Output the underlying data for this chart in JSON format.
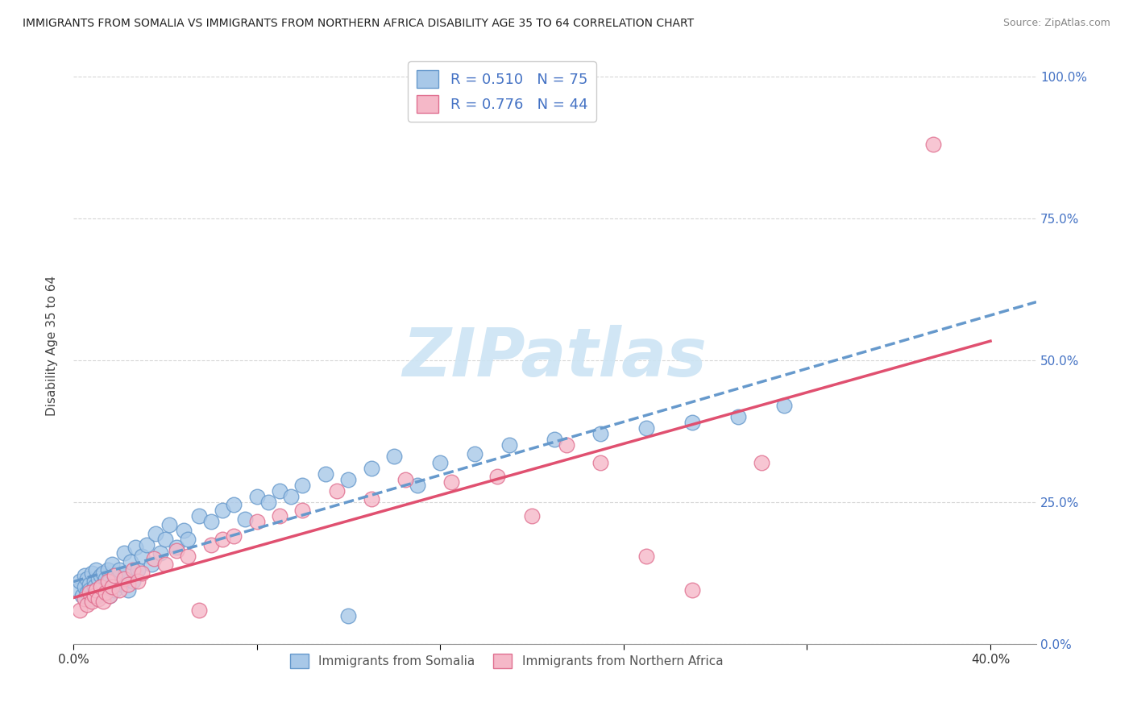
{
  "title": "IMMIGRANTS FROM SOMALIA VS IMMIGRANTS FROM NORTHERN AFRICA DISABILITY AGE 35 TO 64 CORRELATION CHART",
  "source": "Source: ZipAtlas.com",
  "ylabel": "Disability Age 35 to 64",
  "xlim": [
    0.0,
    0.42
  ],
  "ylim": [
    0.0,
    1.05
  ],
  "yticks": [
    0.0,
    0.25,
    0.5,
    0.75,
    1.0
  ],
  "right_ytick_labels": [
    "0.0%",
    "25.0%",
    "50.0%",
    "75.0%",
    "100.0%"
  ],
  "xtick_positions": [
    0.0,
    0.08,
    0.16,
    0.24,
    0.32,
    0.4
  ],
  "xtick_labels": [
    "0.0%",
    "",
    "",
    "",
    "",
    "40.0%"
  ],
  "somalia_color": "#a8c8e8",
  "somalia_edge_color": "#6699cc",
  "northern_africa_color": "#f5b8c8",
  "northern_africa_edge_color": "#e07090",
  "somalia_R": 0.51,
  "somalia_N": 75,
  "northern_africa_R": 0.776,
  "northern_africa_N": 44,
  "legend_text_color": "#4472c4",
  "somalia_line_color": "#6699cc",
  "northern_africa_line_color": "#e05070",
  "background_color": "#ffffff",
  "grid_color": "#cccccc",
  "watermark_text": "ZIPatlas",
  "watermark_color": "#cce4f4",
  "somalia_scatter_x": [
    0.002,
    0.003,
    0.004,
    0.005,
    0.005,
    0.006,
    0.006,
    0.007,
    0.007,
    0.008,
    0.008,
    0.009,
    0.009,
    0.01,
    0.01,
    0.011,
    0.011,
    0.012,
    0.012,
    0.013,
    0.013,
    0.014,
    0.014,
    0.015,
    0.015,
    0.016,
    0.016,
    0.017,
    0.018,
    0.018,
    0.019,
    0.02,
    0.021,
    0.022,
    0.023,
    0.024,
    0.025,
    0.026,
    0.027,
    0.028,
    0.03,
    0.032,
    0.034,
    0.036,
    0.038,
    0.04,
    0.042,
    0.045,
    0.048,
    0.05,
    0.055,
    0.06,
    0.065,
    0.07,
    0.075,
    0.08,
    0.085,
    0.09,
    0.095,
    0.1,
    0.11,
    0.12,
    0.13,
    0.14,
    0.15,
    0.16,
    0.175,
    0.19,
    0.21,
    0.23,
    0.25,
    0.27,
    0.29,
    0.12,
    0.31
  ],
  "somalia_scatter_y": [
    0.095,
    0.11,
    0.085,
    0.12,
    0.1,
    0.09,
    0.115,
    0.105,
    0.095,
    0.125,
    0.08,
    0.11,
    0.1,
    0.095,
    0.13,
    0.115,
    0.085,
    0.12,
    0.095,
    0.105,
    0.125,
    0.09,
    0.115,
    0.1,
    0.13,
    0.11,
    0.085,
    0.14,
    0.12,
    0.095,
    0.115,
    0.13,
    0.105,
    0.16,
    0.125,
    0.095,
    0.145,
    0.11,
    0.17,
    0.13,
    0.155,
    0.175,
    0.14,
    0.195,
    0.16,
    0.185,
    0.21,
    0.17,
    0.2,
    0.185,
    0.225,
    0.215,
    0.235,
    0.245,
    0.22,
    0.26,
    0.25,
    0.27,
    0.26,
    0.28,
    0.3,
    0.29,
    0.31,
    0.33,
    0.28,
    0.32,
    0.335,
    0.35,
    0.36,
    0.37,
    0.38,
    0.39,
    0.4,
    0.05,
    0.42
  ],
  "northern_africa_scatter_x": [
    0.003,
    0.005,
    0.006,
    0.007,
    0.008,
    0.009,
    0.01,
    0.011,
    0.012,
    0.013,
    0.014,
    0.015,
    0.016,
    0.017,
    0.018,
    0.02,
    0.022,
    0.024,
    0.026,
    0.028,
    0.03,
    0.035,
    0.04,
    0.045,
    0.05,
    0.055,
    0.06,
    0.065,
    0.07,
    0.08,
    0.09,
    0.1,
    0.115,
    0.13,
    0.145,
    0.165,
    0.185,
    0.2,
    0.215,
    0.23,
    0.25,
    0.27,
    0.3,
    0.375
  ],
  "northern_africa_scatter_y": [
    0.06,
    0.08,
    0.07,
    0.09,
    0.075,
    0.085,
    0.095,
    0.08,
    0.1,
    0.075,
    0.09,
    0.11,
    0.085,
    0.1,
    0.12,
    0.095,
    0.115,
    0.105,
    0.13,
    0.11,
    0.125,
    0.15,
    0.14,
    0.165,
    0.155,
    0.06,
    0.175,
    0.185,
    0.19,
    0.215,
    0.225,
    0.235,
    0.27,
    0.255,
    0.29,
    0.285,
    0.295,
    0.225,
    0.35,
    0.32,
    0.155,
    0.095,
    0.32,
    0.88
  ],
  "somalia_line_xmin": 0.0,
  "somalia_line_xmax": 0.42,
  "northern_africa_line_xmin": 0.0,
  "northern_africa_line_xmax": 0.4
}
